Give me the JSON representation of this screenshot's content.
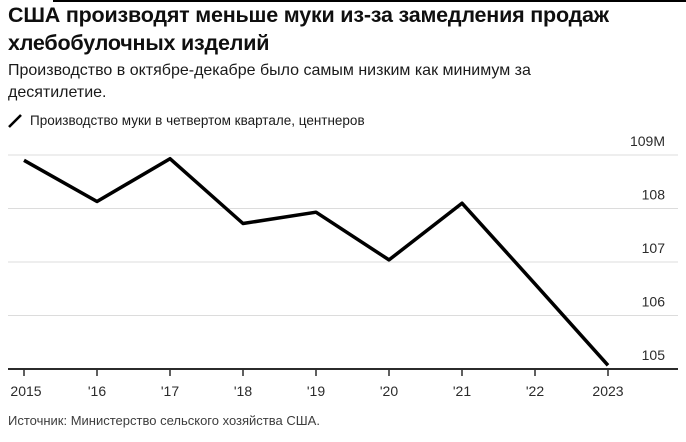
{
  "header": {
    "title": "США производят меньше муки из-за замедления продаж хлебобулочных изделий",
    "subtitle": "Производство в октябре-декабре было самым низким как минимум за десятилетие."
  },
  "legend": {
    "label": "Производство муки в четвертом квартале, центнеров",
    "mark_icon": "diagonal-line-mark",
    "mark_color": "#000000"
  },
  "chart_data": {
    "type": "line",
    "title": "Производство муки в четвертом квартале, центнеров",
    "x": [
      2015,
      2016,
      2017,
      2018,
      2019,
      2020,
      2021,
      2022,
      2023
    ],
    "x_tick_labels": [
      "2015",
      "'16",
      "'17",
      "'18",
      "'19",
      "'20",
      "'21",
      "'22",
      "2023"
    ],
    "series": [
      {
        "name": "Производство муки в четвертом квартале, центнеров",
        "values": [
          108.9,
          108.13,
          108.93,
          107.72,
          107.93,
          107.04,
          108.1,
          106.59,
          105.07
        ]
      }
    ],
    "y_ticks": [
      109,
      108,
      107,
      106,
      105
    ],
    "y_tick_labels": [
      "109M",
      "108",
      "107",
      "106",
      "105"
    ],
    "ylim": [
      105,
      109
    ],
    "grid": "horizontal",
    "legend_position": "top-left",
    "line_color": "#000000",
    "gridline_color": "#dcdcdc",
    "axis_color": "#2b2b2b"
  },
  "footer": {
    "source": "Источник: Министерство сельского хозяйства США."
  }
}
